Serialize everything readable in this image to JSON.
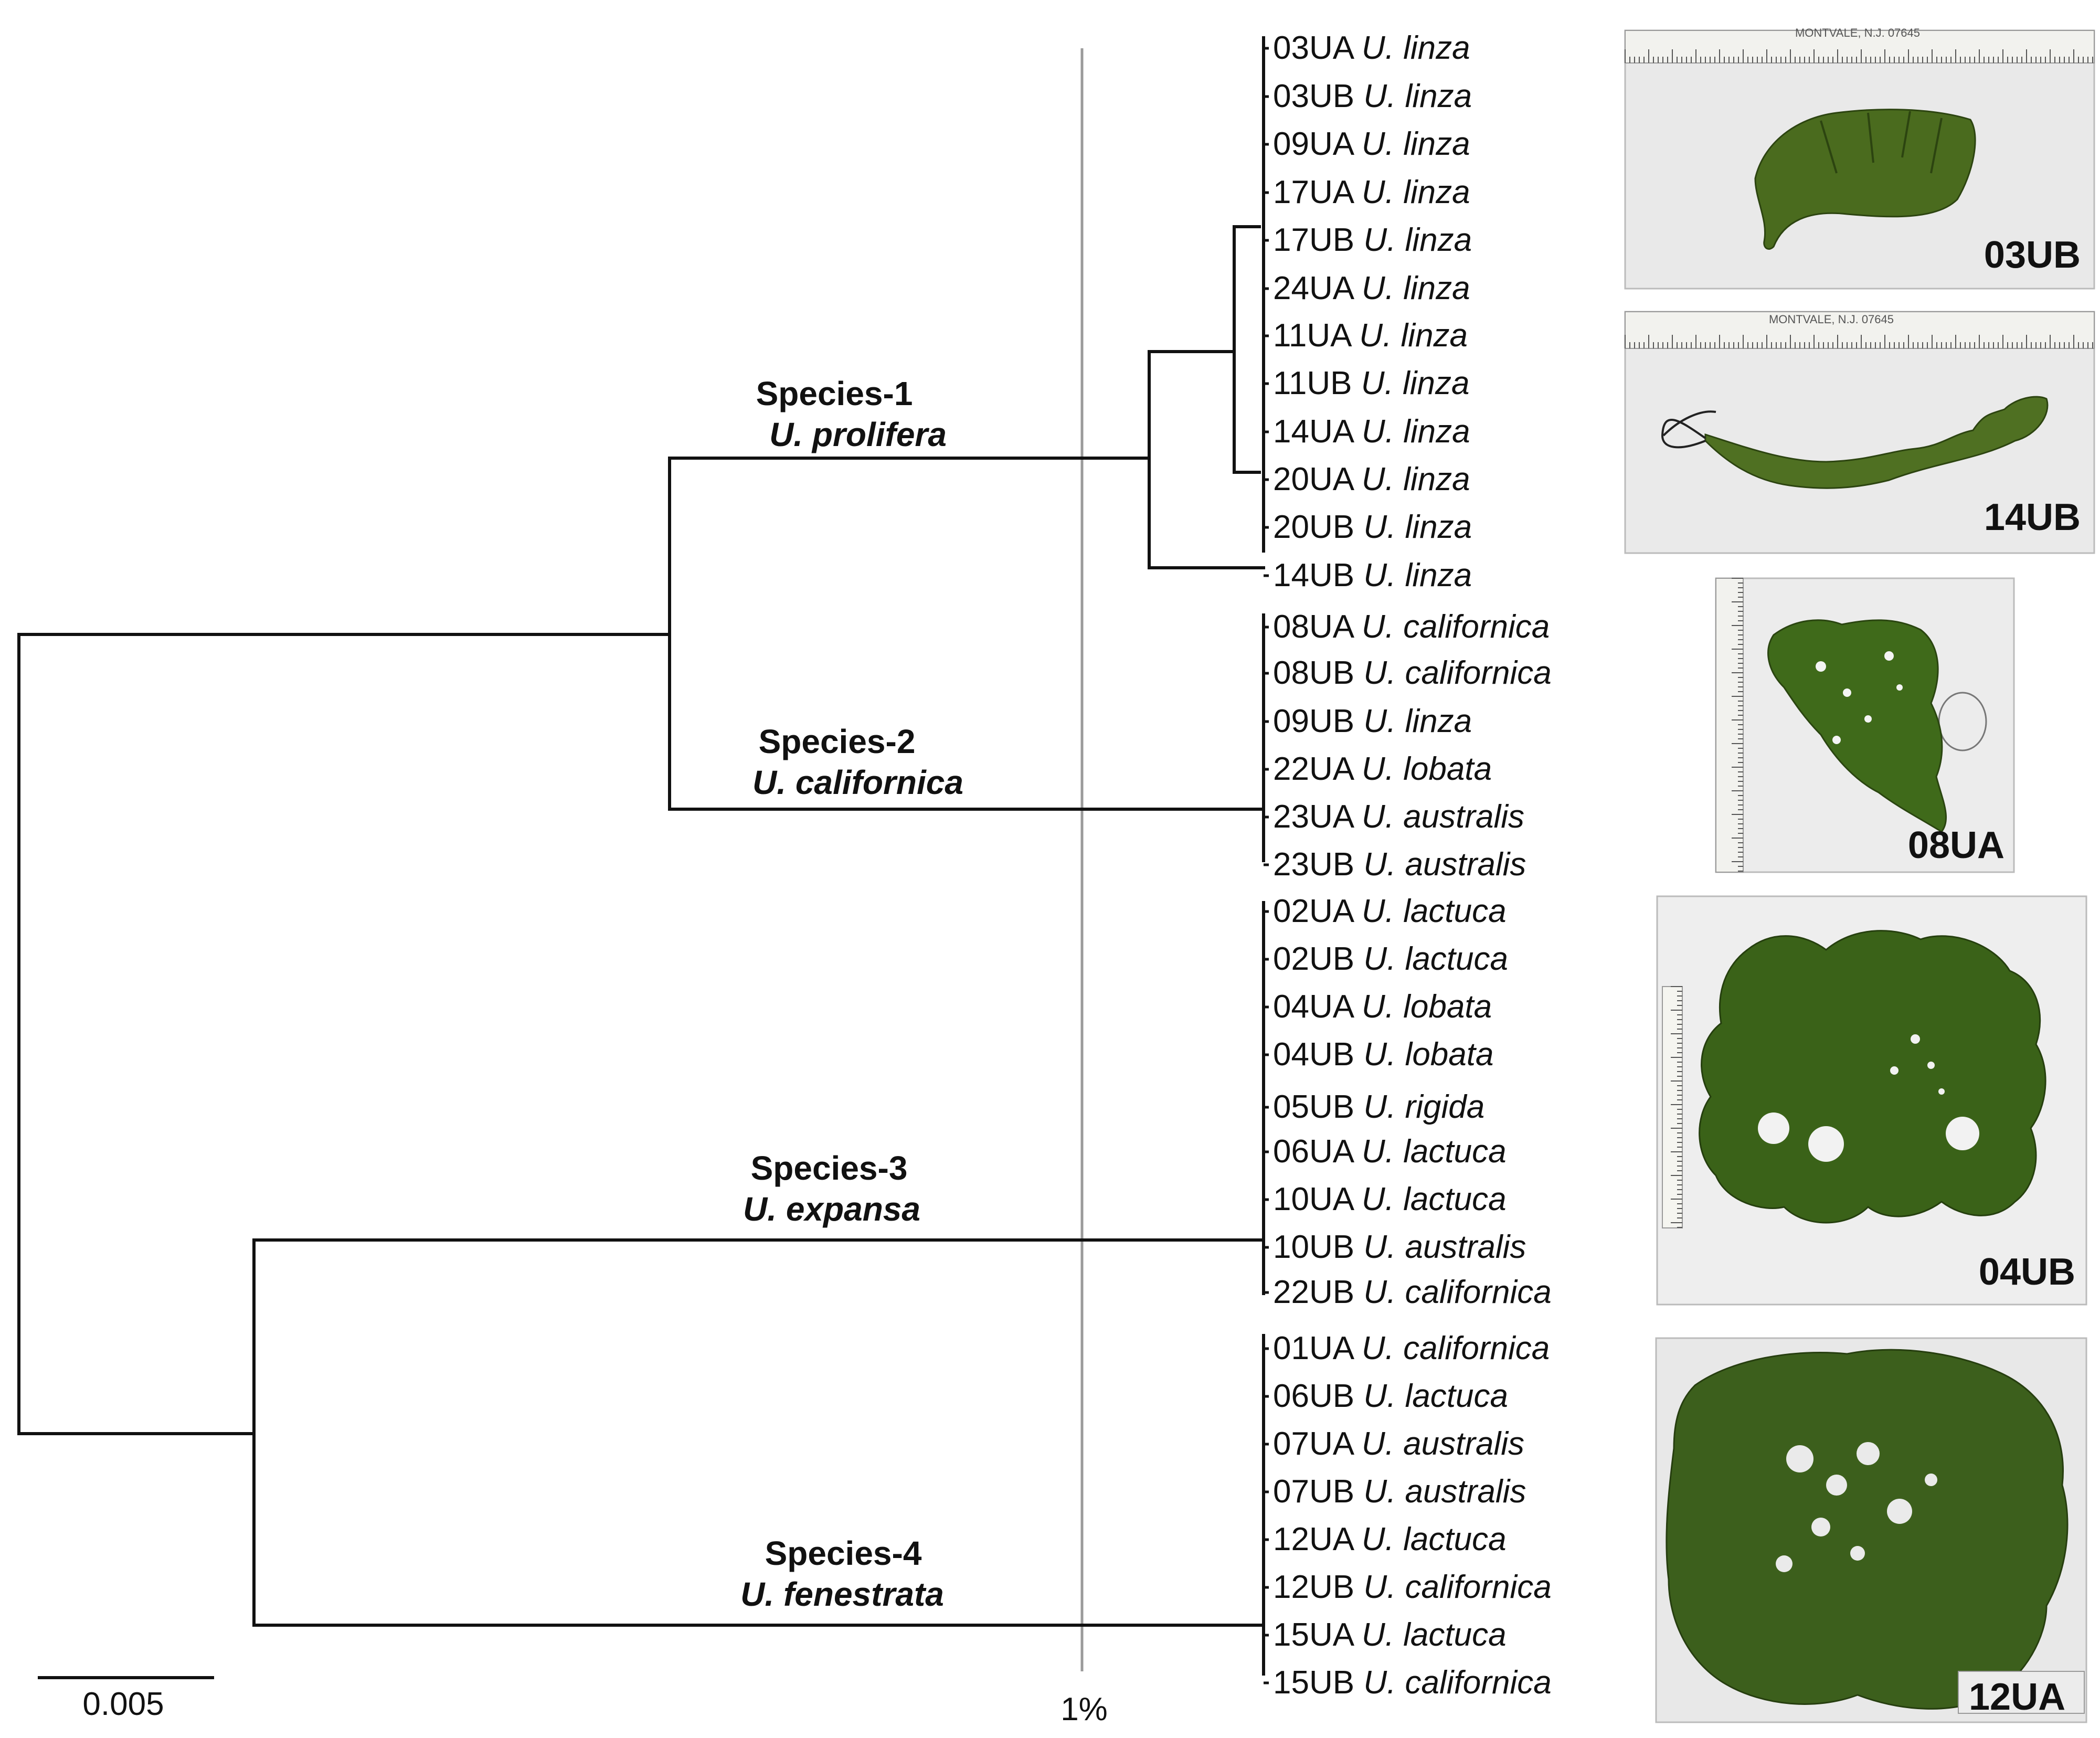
{
  "tree": {
    "clades": [
      {
        "id": "sp1",
        "name": "Species-1",
        "species": "U. prolifera"
      },
      {
        "id": "sp2",
        "name": "Species-2",
        "species": "U. californica"
      },
      {
        "id": "sp3",
        "name": "Species-3",
        "species": "U. expansa"
      },
      {
        "id": "sp4",
        "name": "Species-4",
        "species": "U. fenestrata"
      }
    ],
    "leaves": [
      {
        "code": "03UA",
        "species": "U. linza"
      },
      {
        "code": "03UB",
        "species": "U. linza"
      },
      {
        "code": "09UA",
        "species": "U. linza"
      },
      {
        "code": "17UA",
        "species": "U. linza"
      },
      {
        "code": "17UB",
        "species": "U. linza"
      },
      {
        "code": "24UA",
        "species": "U. linza"
      },
      {
        "code": "11UA",
        "species": "U. linza"
      },
      {
        "code": "11UB",
        "species": "U. linza"
      },
      {
        "code": "14UA",
        "species": "U. linza"
      },
      {
        "code": "20UA",
        "species": "U. linza"
      },
      {
        "code": "20UB",
        "species": "U. linza"
      },
      {
        "code": "14UB",
        "species": "U. linza"
      },
      {
        "code": "08UA",
        "species": "U. californica"
      },
      {
        "code": "08UB",
        "species": "U. californica"
      },
      {
        "code": "09UB",
        "species": "U. linza"
      },
      {
        "code": "22UA",
        "species": "U. lobata"
      },
      {
        "code": "23UA",
        "species": "U. australis"
      },
      {
        "code": "23UB",
        "species": "U. australis"
      },
      {
        "code": "02UA",
        "species": "U. lactuca"
      },
      {
        "code": "02UB",
        "species": "U. lactuca"
      },
      {
        "code": "04UA",
        "species": "U. lobata"
      },
      {
        "code": "04UB",
        "species": "U. lobata"
      },
      {
        "code": "05UB",
        "species": "U. rigida"
      },
      {
        "code": "06UA",
        "species": "U. lactuca"
      },
      {
        "code": "10UA",
        "species": "U. lactuca"
      },
      {
        "code": "10UB",
        "species": "U. australis"
      },
      {
        "code": "22UB",
        "species": "U. californica"
      },
      {
        "code": "01UA",
        "species": "U. californica"
      },
      {
        "code": "06UB",
        "species": "U. lactuca"
      },
      {
        "code": "07UA",
        "species": "U. australis"
      },
      {
        "code": "07UB",
        "species": "U. australis"
      },
      {
        "code": "12UA",
        "species": "U. lactuca"
      },
      {
        "code": "12UB",
        "species": "U. californica"
      },
      {
        "code": "15UA",
        "species": "U. lactuca"
      },
      {
        "code": "15UB",
        "species": "U. californica"
      }
    ]
  },
  "scale_bar": {
    "label": "0.005"
  },
  "threshold_line": {
    "label": "1%"
  },
  "photos": [
    {
      "id": "p03UB",
      "label": "03UB",
      "ruler_text": "MONTVALE, N.J. 07645",
      "color": "#4a6b1e"
    },
    {
      "id": "p14UB",
      "label": "14UB",
      "ruler_text": "MONTVALE, N.J. 07645",
      "color": "#4f7022"
    },
    {
      "id": "p08UA",
      "label": "08UA",
      "color": "#3f6a1a"
    },
    {
      "id": "p04UB",
      "label": "04UB",
      "color": "#3a6218"
    },
    {
      "id": "p12UA",
      "label": "12UA",
      "color": "#3c5f1c"
    }
  ],
  "colors": {
    "line": "#111111",
    "threshold": "#9a9a9a",
    "paper": "#eeeeee"
  }
}
